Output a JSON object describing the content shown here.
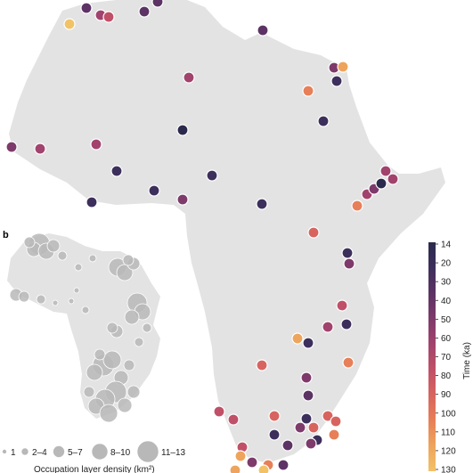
{
  "panel_label": "b",
  "colorbar": {
    "title": "Time (ka)",
    "ticks": [
      "14",
      "20",
      "30",
      "40",
      "50",
      "60",
      "70",
      "80",
      "90",
      "100",
      "110",
      "120",
      "130"
    ],
    "colors": [
      "#2b2a4c",
      "#3d2f5c",
      "#5c3364",
      "#7e3a6b",
      "#a1436c",
      "#c05067",
      "#d8645f",
      "#e77f58",
      "#eea45c",
      "#f2c267"
    ]
  },
  "inset_legend": {
    "sizes": [
      "1",
      "2–4",
      "5–7",
      "8–10",
      "11–13"
    ],
    "title": "Occupation layer density (km²)"
  },
  "colors": {
    "land": "#e3e3e3",
    "inset_land": "#e3e3e3",
    "bubble": "#b8b8b8",
    "marker_stroke": "#ffffff"
  }
}
